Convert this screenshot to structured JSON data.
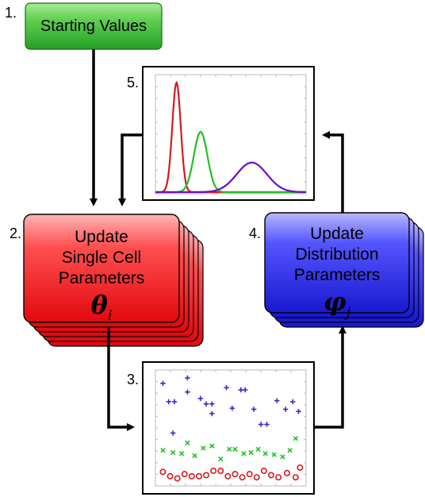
{
  "steps": {
    "start": {
      "number": "1.",
      "label": "Starting Values"
    },
    "single_cell": {
      "number": "2.",
      "lines": [
        "Update",
        "Single Cell",
        "Parameters"
      ],
      "symbol": "θ",
      "subscript": "i"
    },
    "scatter": {
      "number": "3."
    },
    "distribution": {
      "number": "4.",
      "lines": [
        "Update",
        "Distribution",
        "Parameters"
      ],
      "symbol": "φ",
      "subscript": "j"
    },
    "density": {
      "number": "5."
    }
  },
  "colors": {
    "start_box": "#3cb83c",
    "single_cell_box": "#e8141c",
    "distribution_box": "#2a2ad8",
    "curve_red": "#d7191c",
    "curve_green": "#22c022",
    "curve_purple": "#6a0dc8",
    "baseline": "#c07020",
    "plus_markers": "#4b1fcf",
    "x_markers": "#22c022",
    "circle_markers": "#d7191c"
  },
  "density_curves": [
    {
      "color": "curve_red",
      "mean": 0.14,
      "sd": 0.028,
      "peak": 1.0
    },
    {
      "color": "curve_green",
      "mean": 0.3,
      "sd": 0.045,
      "peak": 0.55
    },
    {
      "color": "curve_purple",
      "mean": 0.64,
      "sd": 0.1,
      "peak": 0.27
    }
  ],
  "scatter_markers": {
    "plus": [
      [
        0.03,
        0.92
      ],
      [
        0.2,
        0.97
      ],
      [
        0.07,
        0.75
      ],
      [
        0.11,
        0.75
      ],
      [
        0.2,
        0.84
      ],
      [
        0.29,
        0.78
      ],
      [
        0.33,
        0.73
      ],
      [
        0.37,
        0.73
      ],
      [
        0.37,
        0.64
      ],
      [
        0.47,
        0.88
      ],
      [
        0.51,
        0.69
      ],
      [
        0.57,
        0.86
      ],
      [
        0.6,
        0.86
      ],
      [
        0.66,
        0.68
      ],
      [
        0.71,
        0.54
      ],
      [
        0.75,
        0.54
      ],
      [
        0.82,
        0.76
      ],
      [
        0.88,
        0.68
      ],
      [
        0.93,
        0.75
      ],
      [
        0.97,
        0.66
      ],
      [
        0.1,
        0.46
      ]
    ],
    "x": [
      [
        0.03,
        0.3
      ],
      [
        0.1,
        0.28
      ],
      [
        0.16,
        0.27
      ],
      [
        0.2,
        0.37
      ],
      [
        0.25,
        0.25
      ],
      [
        0.31,
        0.32
      ],
      [
        0.37,
        0.34
      ],
      [
        0.43,
        0.22
      ],
      [
        0.49,
        0.31
      ],
      [
        0.53,
        0.31
      ],
      [
        0.59,
        0.27
      ],
      [
        0.64,
        0.28
      ],
      [
        0.69,
        0.31
      ],
      [
        0.74,
        0.27
      ],
      [
        0.8,
        0.26
      ],
      [
        0.86,
        0.24
      ],
      [
        0.91,
        0.3
      ],
      [
        0.95,
        0.41
      ]
    ],
    "circle": [
      [
        0.03,
        0.1
      ],
      [
        0.08,
        0.06
      ],
      [
        0.13,
        0.04
      ],
      [
        0.18,
        0.08
      ],
      [
        0.23,
        0.06
      ],
      [
        0.28,
        0.06
      ],
      [
        0.33,
        0.07
      ],
      [
        0.38,
        0.11
      ],
      [
        0.43,
        0.11
      ],
      [
        0.48,
        0.06
      ],
      [
        0.53,
        0.08
      ],
      [
        0.58,
        0.05
      ],
      [
        0.63,
        0.08
      ],
      [
        0.68,
        0.05
      ],
      [
        0.73,
        0.11
      ],
      [
        0.78,
        0.07
      ],
      [
        0.83,
        0.05
      ],
      [
        0.89,
        0.09
      ],
      [
        0.95,
        0.05
      ],
      [
        0.98,
        0.14
      ]
    ]
  }
}
